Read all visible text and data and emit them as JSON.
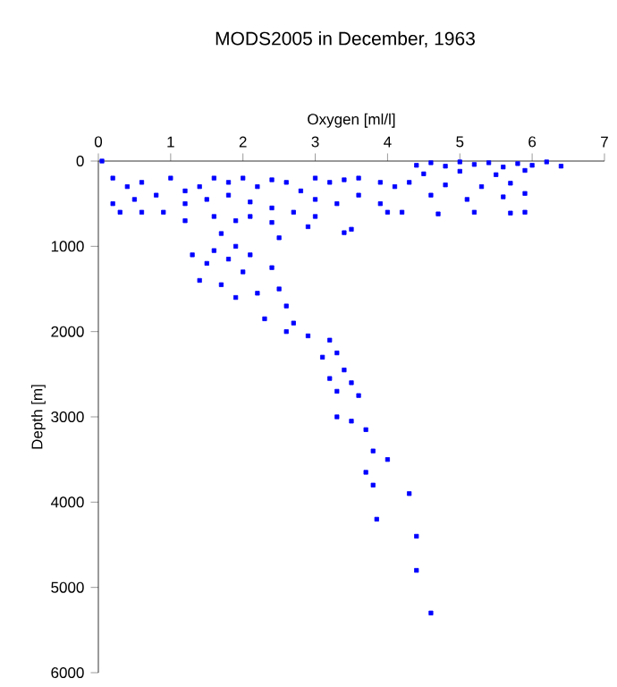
{
  "chart_data": {
    "type": "scatter",
    "title": "MODS2005 in December, 1963",
    "xlabel": "Oxygen [ml/l]",
    "ylabel": "Depth [m]",
    "xlim": [
      0,
      7
    ],
    "xticks": [
      0,
      1,
      2,
      3,
      4,
      5,
      6,
      7
    ],
    "ylim": [
      6000,
      0
    ],
    "yticks": [
      0,
      1000,
      2000,
      3000,
      4000,
      5000,
      6000
    ],
    "marker": "square",
    "grid": false,
    "series": [
      {
        "color": "#0000ff",
        "x": [
          0.05,
          4.4,
          4.6,
          4.8,
          5.0,
          5.2,
          5.4,
          5.6,
          5.8,
          6.0,
          6.2,
          6.4,
          4.5,
          5.0,
          5.5,
          5.9,
          4.3,
          4.8,
          5.3,
          5.7,
          4.6,
          5.1,
          5.6,
          5.9,
          4.2,
          4.7,
          5.2,
          5.7,
          5.9,
          0.2,
          0.4,
          0.6,
          0.8,
          1.0,
          1.2,
          1.4,
          1.6,
          1.8,
          2.0,
          2.2,
          2.4,
          2.6,
          2.8,
          3.0,
          3.2,
          3.4,
          3.6,
          3.9,
          4.1,
          0.2,
          0.3,
          0.6,
          0.9,
          0.5,
          1.2,
          1.5,
          1.8,
          2.1,
          2.4,
          2.7,
          3.0,
          3.3,
          3.6,
          3.9,
          4.0,
          3.0,
          2.1,
          1.6,
          1.2,
          1.9,
          2.4,
          3.5,
          1.7,
          2.5,
          3.4,
          2.9,
          1.3,
          1.6,
          1.9,
          1.5,
          1.8,
          2.1,
          1.4,
          1.7,
          2.0,
          2.4,
          1.9,
          2.2,
          2.5,
          2.6,
          2.3,
          2.7,
          2.6,
          2.9,
          3.2,
          3.3,
          3.1,
          3.4,
          3.2,
          3.5,
          3.3,
          3.6,
          3.3,
          3.5,
          3.7,
          3.8,
          4.0,
          3.7,
          3.8,
          4.3,
          3.85,
          4.4,
          4.4,
          4.6
        ],
        "values": [
          0,
          50,
          20,
          60,
          10,
          40,
          20,
          70,
          30,
          50,
          10,
          60,
          150,
          120,
          160,
          110,
          250,
          280,
          300,
          260,
          400,
          450,
          420,
          380,
          600,
          620,
          600,
          610,
          600,
          200,
          300,
          250,
          400,
          200,
          350,
          300,
          200,
          250,
          200,
          300,
          220,
          250,
          350,
          200,
          250,
          220,
          200,
          250,
          300,
          500,
          600,
          600,
          600,
          450,
          500,
          450,
          400,
          480,
          550,
          600,
          450,
          500,
          400,
          500,
          600,
          650,
          650,
          650,
          700,
          700,
          720,
          800,
          850,
          900,
          840,
          770,
          1100,
          1050,
          1000,
          1200,
          1150,
          1100,
          1400,
          1450,
          1300,
          1250,
          1600,
          1550,
          1500,
          1700,
          1850,
          1900,
          2000,
          2050,
          2100,
          2250,
          2300,
          2450,
          2550,
          2600,
          2700,
          2750,
          3000,
          3050,
          3150,
          3400,
          3500,
          3650,
          3800,
          3900,
          4200,
          4400,
          4800,
          5300
        ]
      }
    ]
  }
}
